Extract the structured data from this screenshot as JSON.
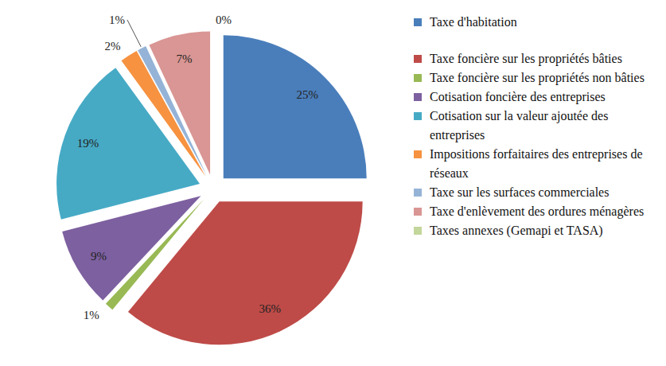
{
  "chart_data": {
    "type": "pie",
    "categories": [
      "Taxe d'habitation",
      "Taxe foncière sur les propriétés bâties",
      "Taxe foncière sur les propriétés non bâties",
      "Cotisation foncière des entreprises",
      "Cotisation sur la valeur ajoutée des entreprises",
      "Impositions forfaitaires des entreprises de réseaux",
      "Taxe sur les surfaces commerciales",
      "Taxe d'enlèvement des ordures ménagères",
      "Taxes annexes (Gemapi et TASA)"
    ],
    "values": [
      25,
      36,
      1,
      9,
      19,
      2,
      1,
      7,
      0
    ],
    "value_labels": [
      "25%",
      "36%",
      "1%",
      "9%",
      "19%",
      "2%",
      "1%",
      "7%",
      "0%"
    ],
    "colors": [
      "#4a7ebb",
      "#be4b48",
      "#98b954",
      "#7d60a0",
      "#46aac5",
      "#f69240",
      "#95b3d7",
      "#d99694",
      "#c3d69b"
    ],
    "data_labels": true,
    "legend": "right"
  }
}
